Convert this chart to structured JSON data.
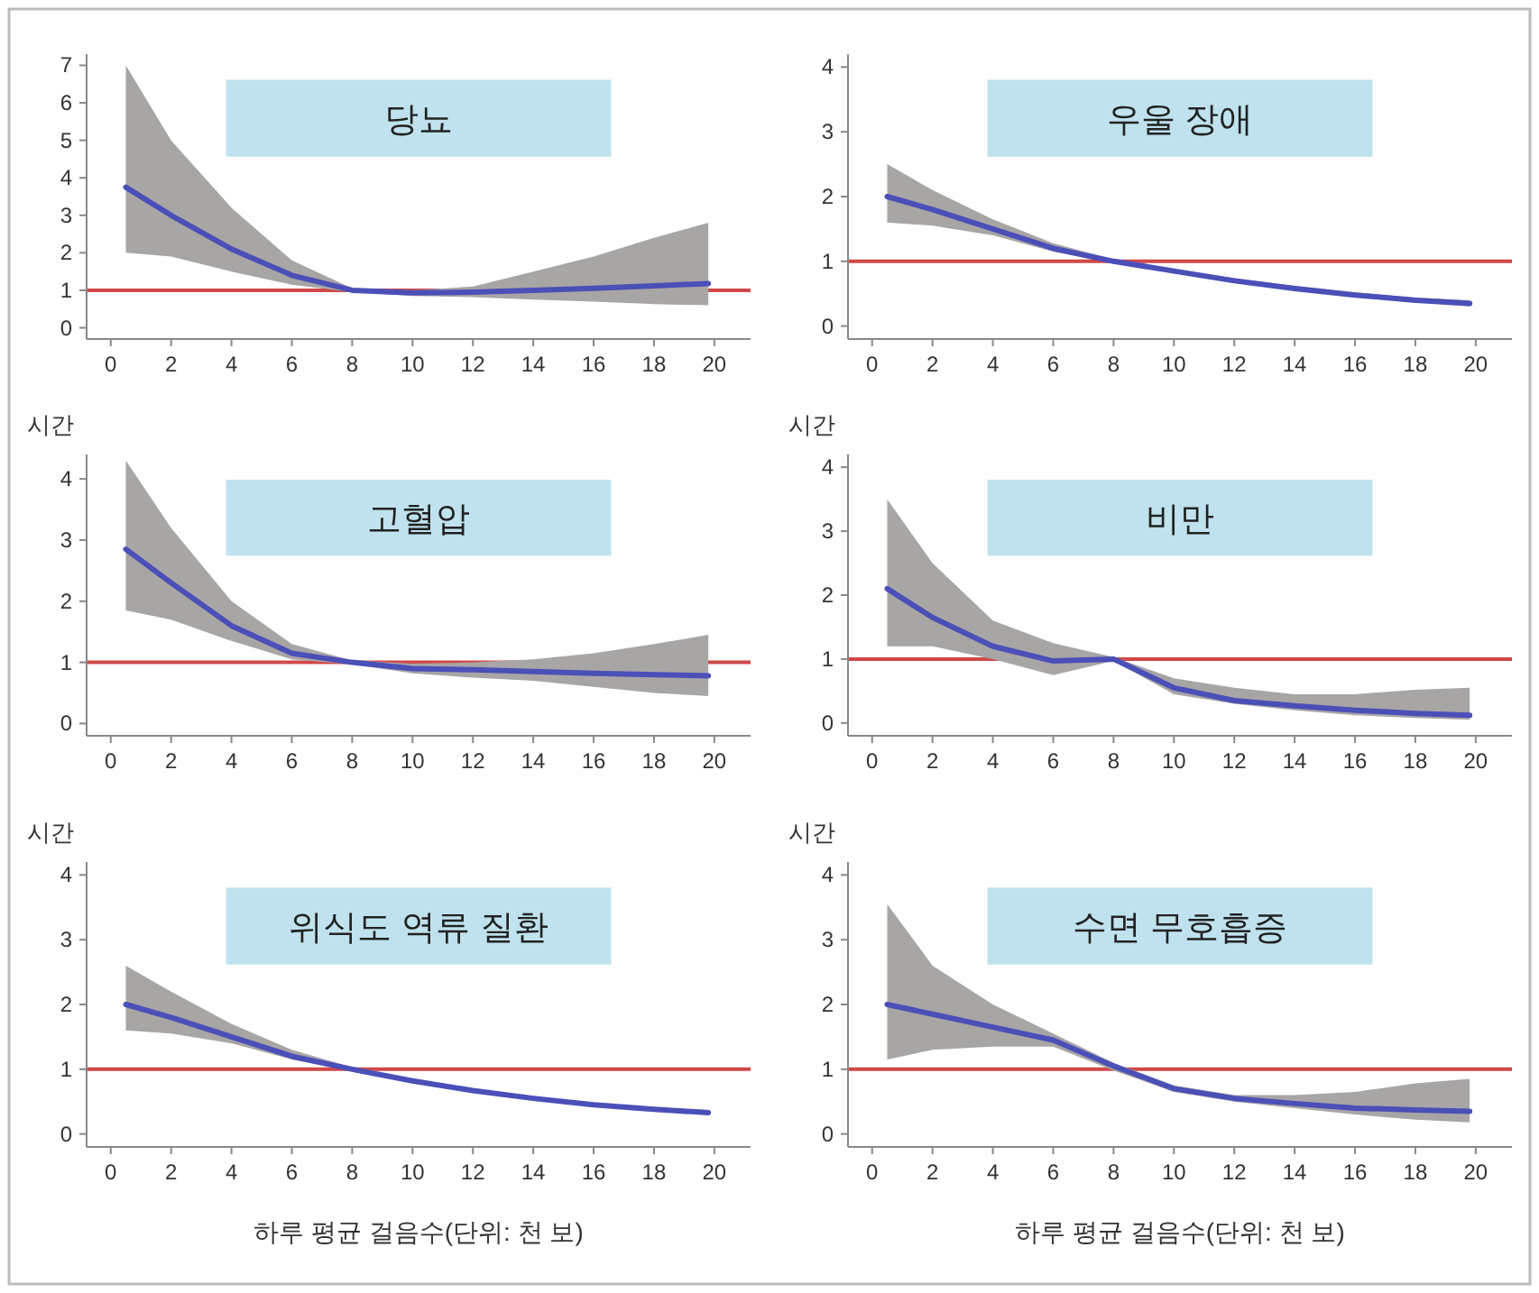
{
  "chart_data": [
    {
      "type": "line",
      "title": "당뇨",
      "x": [
        0.5,
        2,
        4,
        6,
        8,
        10,
        12,
        14,
        16,
        18,
        19.8
      ],
      "xlim": [
        -0.8,
        21.2
      ],
      "xticks": [
        0,
        2,
        4,
        6,
        8,
        10,
        12,
        14,
        16,
        18,
        20
      ],
      "ylim": [
        -0.3,
        7.3
      ],
      "yticks": [
        0,
        1,
        2,
        3,
        4,
        5,
        6,
        7
      ],
      "series": [
        {
          "color": "#4b4fb8",
          "values": [
            3.75,
            3.0,
            2.1,
            1.4,
            1.0,
            0.93,
            0.95,
            1.0,
            1.05,
            1.12,
            1.18
          ],
          "lower": [
            2.0,
            1.9,
            1.5,
            1.15,
            0.95,
            0.85,
            0.82,
            0.75,
            0.7,
            0.63,
            0.6
          ],
          "upper": [
            7.0,
            5.0,
            3.2,
            1.8,
            1.05,
            1.0,
            1.1,
            1.5,
            1.9,
            2.4,
            2.8
          ]
        }
      ],
      "ref_lines": [
        {
          "axis": "y",
          "value": 1,
          "color": "#d04848"
        }
      ]
    },
    {
      "type": "line",
      "title": "우울 장애",
      "x": [
        0.5,
        2,
        4,
        6,
        8,
        10,
        12,
        14,
        16,
        18,
        19.8
      ],
      "xlim": [
        -0.8,
        21.2
      ],
      "xticks": [
        0,
        2,
        4,
        6,
        8,
        10,
        12,
        14,
        16,
        18,
        20
      ],
      "ylim": [
        -0.2,
        4.2
      ],
      "yticks": [
        0,
        1,
        2,
        3,
        4
      ],
      "series": [
        {
          "color": "#4b4fb8",
          "values": [
            2.0,
            1.8,
            1.5,
            1.2,
            1.0,
            0.85,
            0.7,
            0.58,
            0.48,
            0.4,
            0.35
          ],
          "lower": [
            1.6,
            1.55,
            1.4,
            1.15,
            0.97,
            0.82,
            0.67,
            0.55,
            0.45,
            0.37,
            0.3
          ],
          "upper": [
            2.5,
            2.1,
            1.65,
            1.28,
            1.03,
            0.88,
            0.74,
            0.62,
            0.52,
            0.44,
            0.4
          ]
        }
      ],
      "ref_lines": [
        {
          "axis": "y",
          "value": 1,
          "color": "#d04848"
        }
      ]
    },
    {
      "type": "line",
      "title": "고혈압",
      "ylabel": "시간",
      "x": [
        0.5,
        2,
        4,
        6,
        8,
        10,
        12,
        14,
        16,
        18,
        19.8
      ],
      "xlim": [
        -0.8,
        21.2
      ],
      "xticks": [
        0,
        2,
        4,
        6,
        8,
        10,
        12,
        14,
        16,
        18,
        20
      ],
      "ylim": [
        -0.2,
        4.4
      ],
      "yticks": [
        0,
        1,
        2,
        3,
        4
      ],
      "series": [
        {
          "color": "#4b4fb8",
          "values": [
            2.85,
            2.3,
            1.6,
            1.15,
            1.0,
            0.9,
            0.88,
            0.85,
            0.82,
            0.8,
            0.78
          ],
          "lower": [
            1.85,
            1.7,
            1.35,
            1.05,
            0.97,
            0.82,
            0.75,
            0.7,
            0.6,
            0.5,
            0.45
          ],
          "upper": [
            4.3,
            3.2,
            2.0,
            1.3,
            1.03,
            0.98,
            1.0,
            1.05,
            1.15,
            1.3,
            1.45
          ]
        }
      ],
      "ref_lines": [
        {
          "axis": "y",
          "value": 1,
          "color": "#d04848"
        }
      ]
    },
    {
      "type": "line",
      "title": "비만",
      "ylabel": "시간",
      "x": [
        0.5,
        2,
        4,
        6,
        8,
        10,
        12,
        14,
        16,
        18,
        19.8
      ],
      "xlim": [
        -0.8,
        21.2
      ],
      "xticks": [
        0,
        2,
        4,
        6,
        8,
        10,
        12,
        14,
        16,
        18,
        20
      ],
      "ylim": [
        -0.2,
        4.2
      ],
      "yticks": [
        0,
        1,
        2,
        3,
        4
      ],
      "series": [
        {
          "color": "#4b4fb8",
          "values": [
            2.1,
            1.65,
            1.2,
            0.97,
            1.0,
            0.55,
            0.35,
            0.27,
            0.2,
            0.15,
            0.12
          ],
          "lower": [
            1.2,
            1.2,
            1.0,
            0.75,
            0.97,
            0.45,
            0.3,
            0.2,
            0.12,
            0.08,
            0.05
          ],
          "upper": [
            3.5,
            2.5,
            1.6,
            1.25,
            1.03,
            0.7,
            0.55,
            0.45,
            0.45,
            0.52,
            0.55
          ]
        }
      ],
      "ref_lines": [
        {
          "axis": "y",
          "value": 1,
          "color": "#d04848"
        }
      ]
    },
    {
      "type": "line",
      "title": "위식도 역류 질환",
      "ylabel": "시간",
      "xlabel": "하루 평균 걸음수(단위: 천 보)",
      "x": [
        0.5,
        2,
        4,
        6,
        8,
        10,
        12,
        14,
        16,
        18,
        19.8
      ],
      "xlim": [
        -0.8,
        21.2
      ],
      "xticks": [
        0,
        2,
        4,
        6,
        8,
        10,
        12,
        14,
        16,
        18,
        20
      ],
      "ylim": [
        -0.2,
        4.2
      ],
      "yticks": [
        0,
        1,
        2,
        3,
        4
      ],
      "series": [
        {
          "color": "#4b4fb8",
          "values": [
            2.0,
            1.8,
            1.5,
            1.2,
            1.0,
            0.82,
            0.67,
            0.55,
            0.45,
            0.38,
            0.33
          ],
          "lower": [
            1.6,
            1.55,
            1.4,
            1.15,
            0.97,
            0.8,
            0.65,
            0.52,
            0.42,
            0.35,
            0.3
          ],
          "upper": [
            2.6,
            2.2,
            1.7,
            1.3,
            1.03,
            0.85,
            0.7,
            0.58,
            0.48,
            0.41,
            0.37
          ]
        }
      ],
      "ref_lines": [
        {
          "axis": "y",
          "value": 1,
          "color": "#d04848"
        }
      ]
    },
    {
      "type": "line",
      "title": "수면 무호흡증",
      "ylabel": "시간",
      "xlabel": "하루 평균 걸음수(단위: 천 보)",
      "x": [
        0.5,
        2,
        4,
        6,
        8,
        10,
        12,
        14,
        16,
        18,
        19.8
      ],
      "xlim": [
        -0.8,
        21.2
      ],
      "xticks": [
        0,
        2,
        4,
        6,
        8,
        10,
        12,
        14,
        16,
        18,
        20
      ],
      "ylim": [
        -0.2,
        4.2
      ],
      "yticks": [
        0,
        1,
        2,
        3,
        4
      ],
      "series": [
        {
          "color": "#4b4fb8",
          "values": [
            2.0,
            1.85,
            1.65,
            1.45,
            1.05,
            0.7,
            0.55,
            0.47,
            0.4,
            0.37,
            0.35
          ],
          "lower": [
            1.15,
            1.3,
            1.35,
            1.35,
            0.98,
            0.65,
            0.5,
            0.4,
            0.3,
            0.22,
            0.18
          ],
          "upper": [
            3.55,
            2.6,
            2.0,
            1.55,
            1.1,
            0.75,
            0.6,
            0.6,
            0.65,
            0.78,
            0.85
          ]
        }
      ],
      "ref_lines": [
        {
          "axis": "y",
          "value": 1,
          "color": "#d04848"
        }
      ]
    }
  ]
}
